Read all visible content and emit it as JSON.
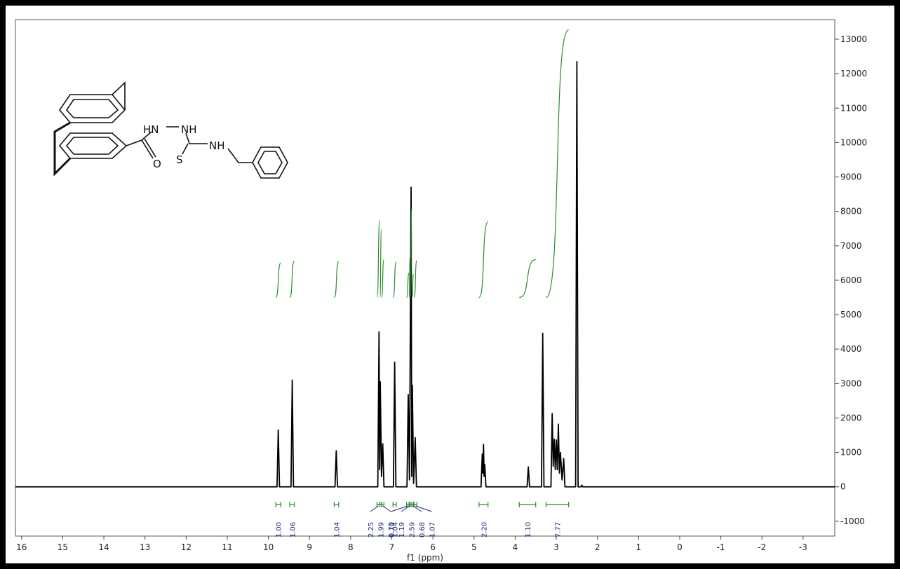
{
  "chart_data": {
    "type": "line",
    "x_label": "f1 (ppm)",
    "color": "#000000",
    "integral_color": "#2e8b2e",
    "integral_label_color": "#1a237e",
    "xlim": [
      16.15,
      -3.77
    ],
    "ylim": [
      -1430,
      13570
    ],
    "xticks": [
      16,
      15,
      14,
      13,
      12,
      11,
      10,
      9,
      8,
      7,
      6,
      5,
      4,
      3,
      2,
      1,
      0,
      -1,
      -2,
      -3
    ],
    "yticks": [
      -1000,
      0,
      1000,
      2000,
      3000,
      4000,
      5000,
      6000,
      7000,
      8000,
      9000,
      10000,
      11000,
      12000,
      13000
    ],
    "x": [
      16.15,
      9.79,
      9.76,
      9.73,
      9.45,
      9.42,
      9.39,
      8.38,
      8.35,
      8.32,
      7.34,
      7.31,
      7.295,
      7.28,
      7.25,
      7.22,
      7.19,
      6.96,
      6.93,
      6.9,
      6.63,
      6.6,
      6.57,
      6.53,
      6.515,
      6.5,
      6.47,
      6.43,
      6.4,
      4.83,
      4.8,
      4.785,
      4.77,
      4.755,
      4.74,
      4.71,
      3.71,
      3.68,
      3.65,
      3.36,
      3.33,
      3.3,
      3.13,
      3.1,
      3.075,
      3.05,
      3.025,
      3.0,
      2.975,
      2.95,
      2.925,
      2.9,
      2.86,
      2.82,
      2.79,
      2.53,
      2.5,
      2.47,
      2.4,
      2.38,
      2.36,
      -3.77
    ],
    "values": [
      0,
      0,
      1650,
      0,
      0,
      3100,
      0,
      0,
      1050,
      0,
      0,
      4500,
      500,
      3050,
      300,
      1250,
      0,
      0,
      3620,
      0,
      0,
      2680,
      200,
      8700,
      300,
      2950,
      100,
      1430,
      0,
      0,
      950,
      400,
      1230,
      300,
      650,
      0,
      0,
      580,
      0,
      0,
      4460,
      0,
      0,
      2130,
      600,
      1380,
      500,
      1360,
      500,
      1820,
      400,
      1000,
      200,
      820,
      0,
      0,
      12350,
      0,
      0,
      50,
      0,
      0
    ],
    "integral_from": [
      9.82,
      9.48,
      8.4,
      7.36,
      7.29,
      7.25,
      6.97,
      6.64,
      6.58,
      6.55,
      6.51,
      6.46,
      4.88,
      3.9,
      3.25
    ],
    "integral_to": [
      9.7,
      9.37,
      8.29,
      7.29,
      7.25,
      7.19,
      6.89,
      6.58,
      6.55,
      6.51,
      6.47,
      6.39,
      4.66,
      3.5,
      2.7
    ],
    "integral_values": [
      1.0,
      1.06,
      1.04,
      2.25,
      1.99,
      1.1,
      1.04,
      0.71,
      1.19,
      2.59,
      0.68,
      1.07,
      2.2,
      1.1,
      7.77
    ],
    "integral_labels": [
      "1.00",
      "1.06",
      "1.04",
      "2.25",
      "1.99",
      "1.10",
      "1.04",
      "0.71",
      "1.19",
      "2.59",
      "0.68",
      "1.07",
      "2.20",
      "1.10",
      "7.77"
    ]
  },
  "structure_labels": [
    "HN",
    "NH",
    "O",
    "S",
    "NH"
  ]
}
